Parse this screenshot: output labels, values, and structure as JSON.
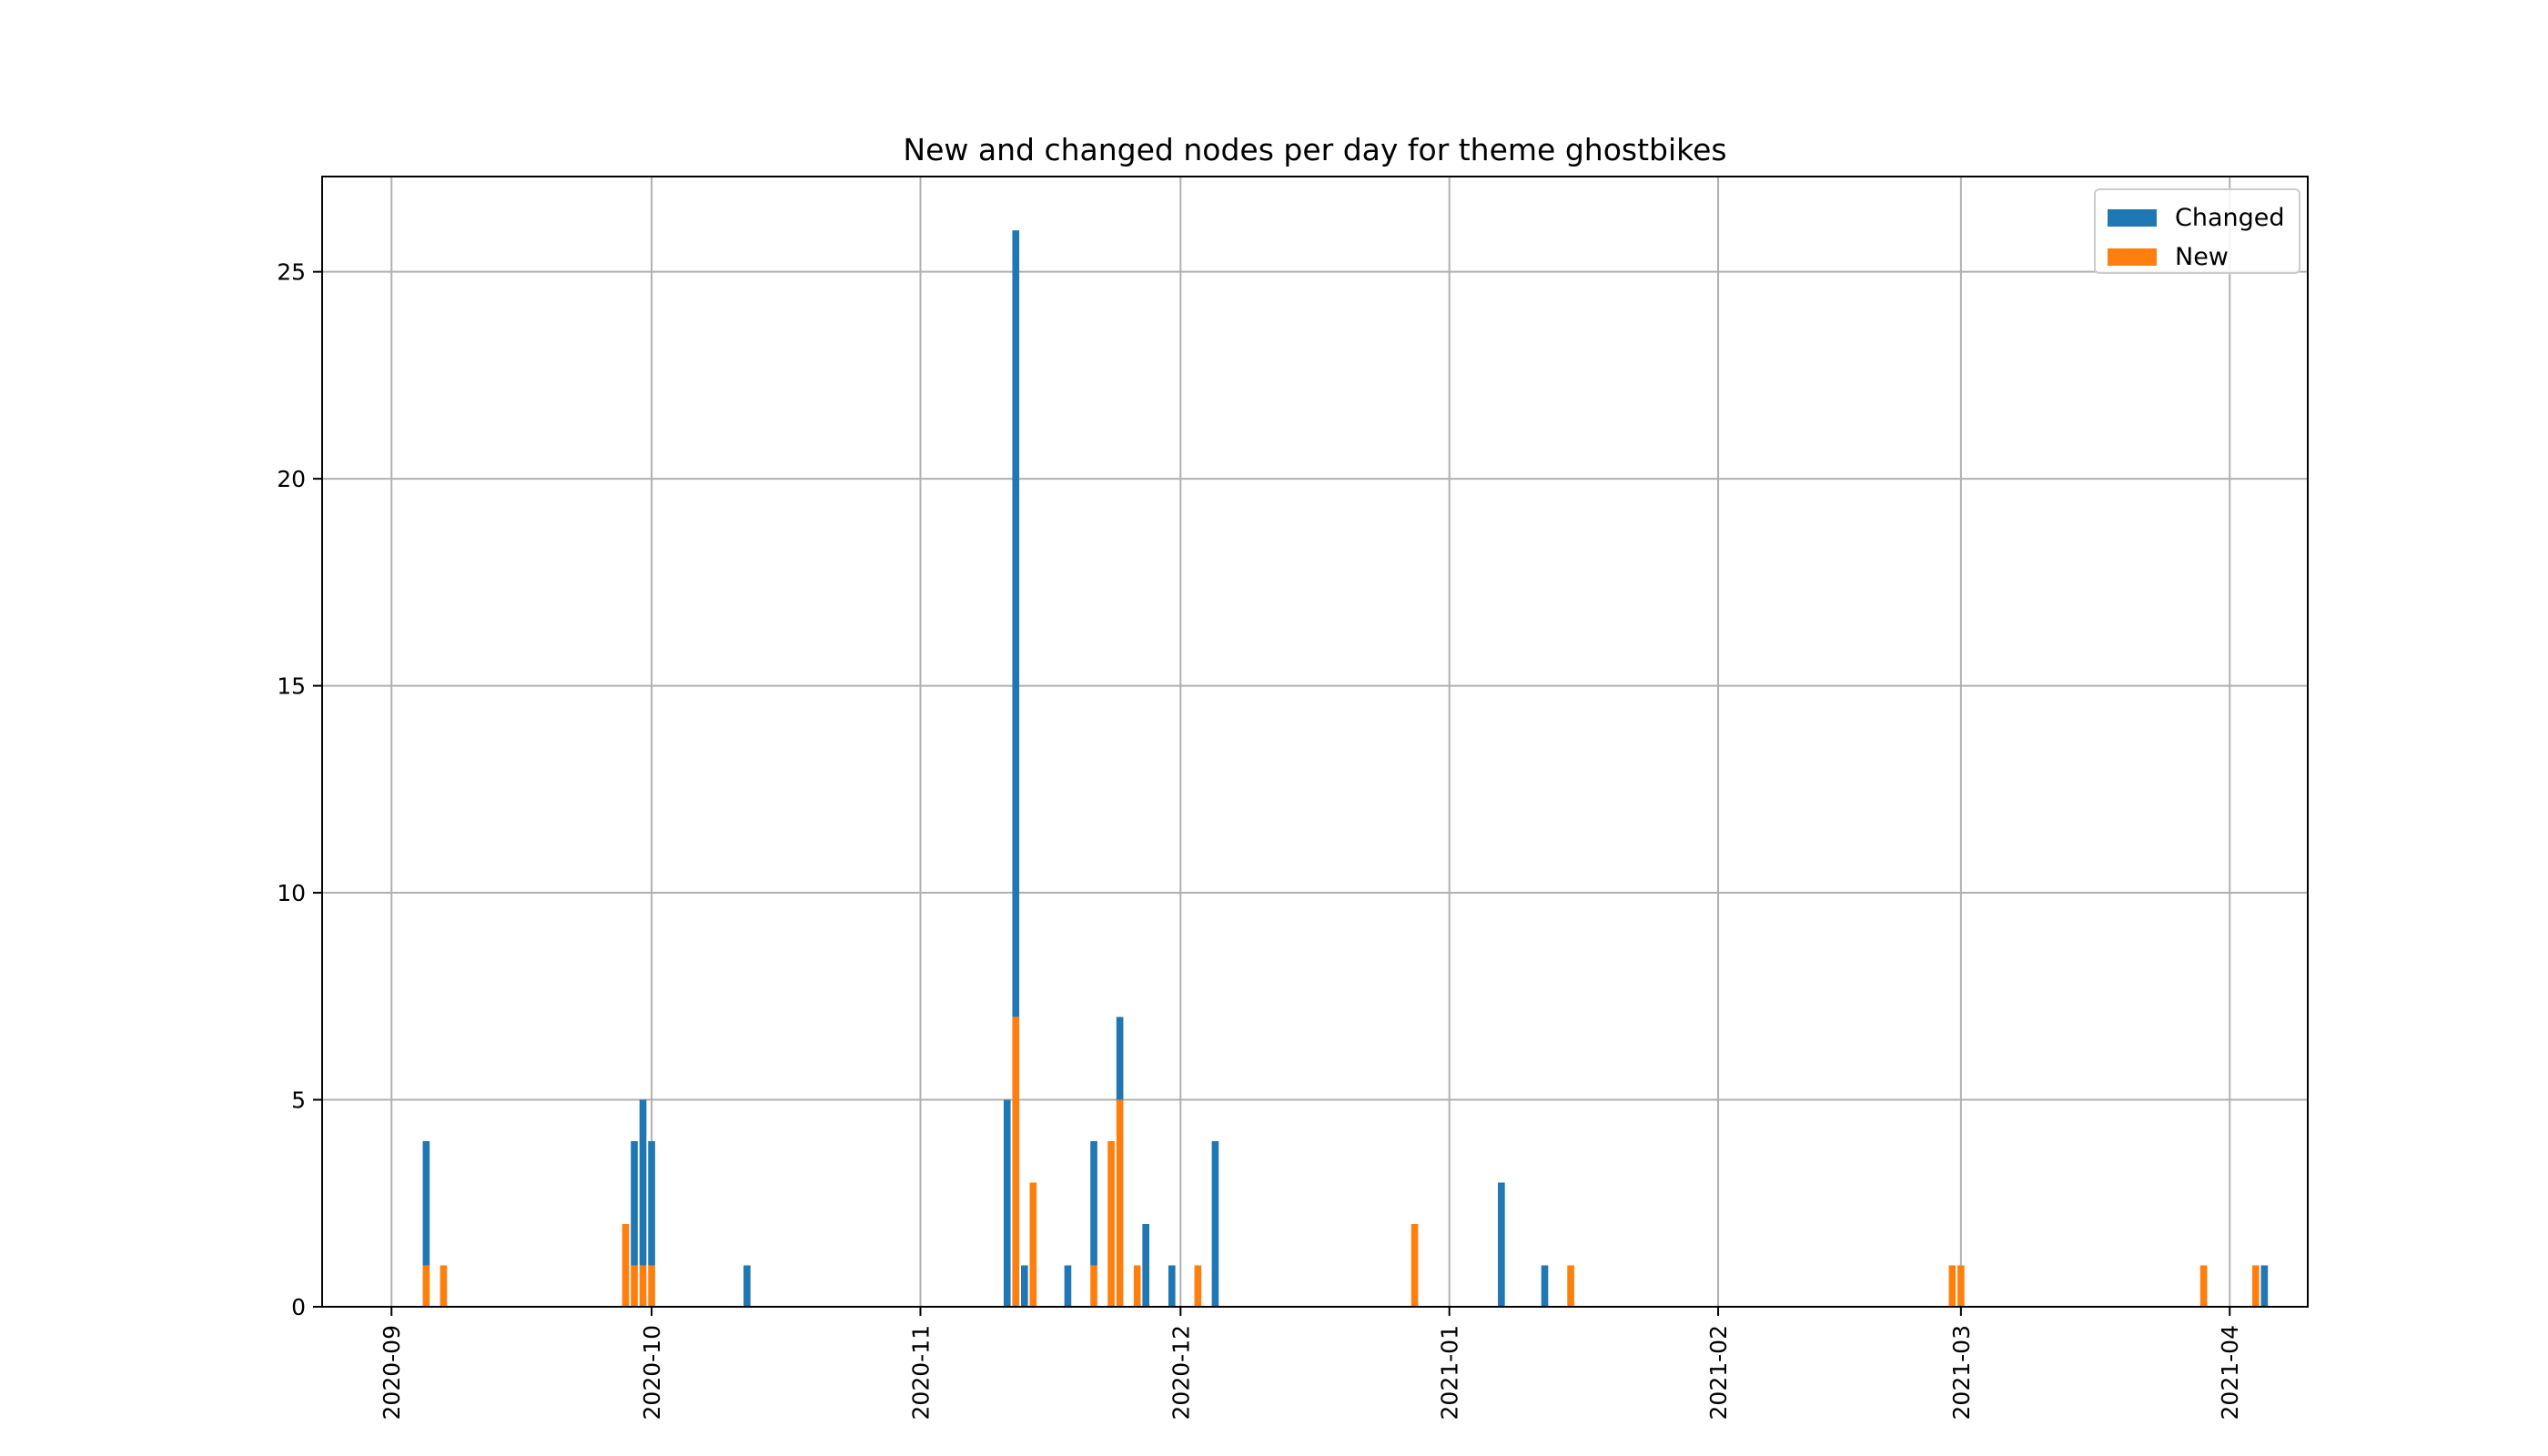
{
  "chart_data": {
    "type": "bar",
    "stacked": true,
    "title": "New and changed nodes per day for theme ghostbikes",
    "xlabel": "",
    "ylabel": "",
    "ylim": [
      0,
      27.3
    ],
    "xlim": [
      "2020-08-24",
      "2021-04-10"
    ],
    "grid": true,
    "legend_position": "top-right",
    "yticks": [
      0,
      5,
      10,
      15,
      20,
      25
    ],
    "xticks": [
      "2020-09",
      "2020-10",
      "2020-11",
      "2020-12",
      "2021-01",
      "2021-02",
      "2021-03",
      "2021-04"
    ],
    "series": [
      {
        "name": "Changed",
        "color": "#1f77b4",
        "points": [
          {
            "x": "2020-09-05",
            "y": 3
          },
          {
            "x": "2020-09-29",
            "y": 3
          },
          {
            "x": "2020-09-30",
            "y": 4
          },
          {
            "x": "2020-10-01",
            "y": 3
          },
          {
            "x": "2020-10-12",
            "y": 1
          },
          {
            "x": "2020-11-11",
            "y": 5
          },
          {
            "x": "2020-11-12",
            "y": 19
          },
          {
            "x": "2020-11-13",
            "y": 1
          },
          {
            "x": "2020-11-18",
            "y": 1
          },
          {
            "x": "2020-11-21",
            "y": 3
          },
          {
            "x": "2020-11-24",
            "y": 2
          },
          {
            "x": "2020-11-27",
            "y": 2
          },
          {
            "x": "2020-11-30",
            "y": 1
          },
          {
            "x": "2020-12-05",
            "y": 4
          },
          {
            "x": "2021-01-07",
            "y": 3
          },
          {
            "x": "2021-01-12",
            "y": 1
          },
          {
            "x": "2021-04-05",
            "y": 1
          }
        ]
      },
      {
        "name": "New",
        "color": "#ff7f0e",
        "points": [
          {
            "x": "2020-09-05",
            "y": 1
          },
          {
            "x": "2020-09-07",
            "y": 1
          },
          {
            "x": "2020-09-28",
            "y": 2
          },
          {
            "x": "2020-09-29",
            "y": 1
          },
          {
            "x": "2020-09-30",
            "y": 1
          },
          {
            "x": "2020-10-01",
            "y": 1
          },
          {
            "x": "2020-11-12",
            "y": 7
          },
          {
            "x": "2020-11-14",
            "y": 3
          },
          {
            "x": "2020-11-21",
            "y": 1
          },
          {
            "x": "2020-11-23",
            "y": 4
          },
          {
            "x": "2020-11-24",
            "y": 5
          },
          {
            "x": "2020-11-26",
            "y": 1
          },
          {
            "x": "2020-12-03",
            "y": 1
          },
          {
            "x": "2020-12-28",
            "y": 2
          },
          {
            "x": "2021-01-15",
            "y": 1
          },
          {
            "x": "2021-02-28",
            "y": 1
          },
          {
            "x": "2021-03-01",
            "y": 1
          },
          {
            "x": "2021-03-29",
            "y": 1
          },
          {
            "x": "2021-04-04",
            "y": 1
          }
        ]
      }
    ]
  }
}
